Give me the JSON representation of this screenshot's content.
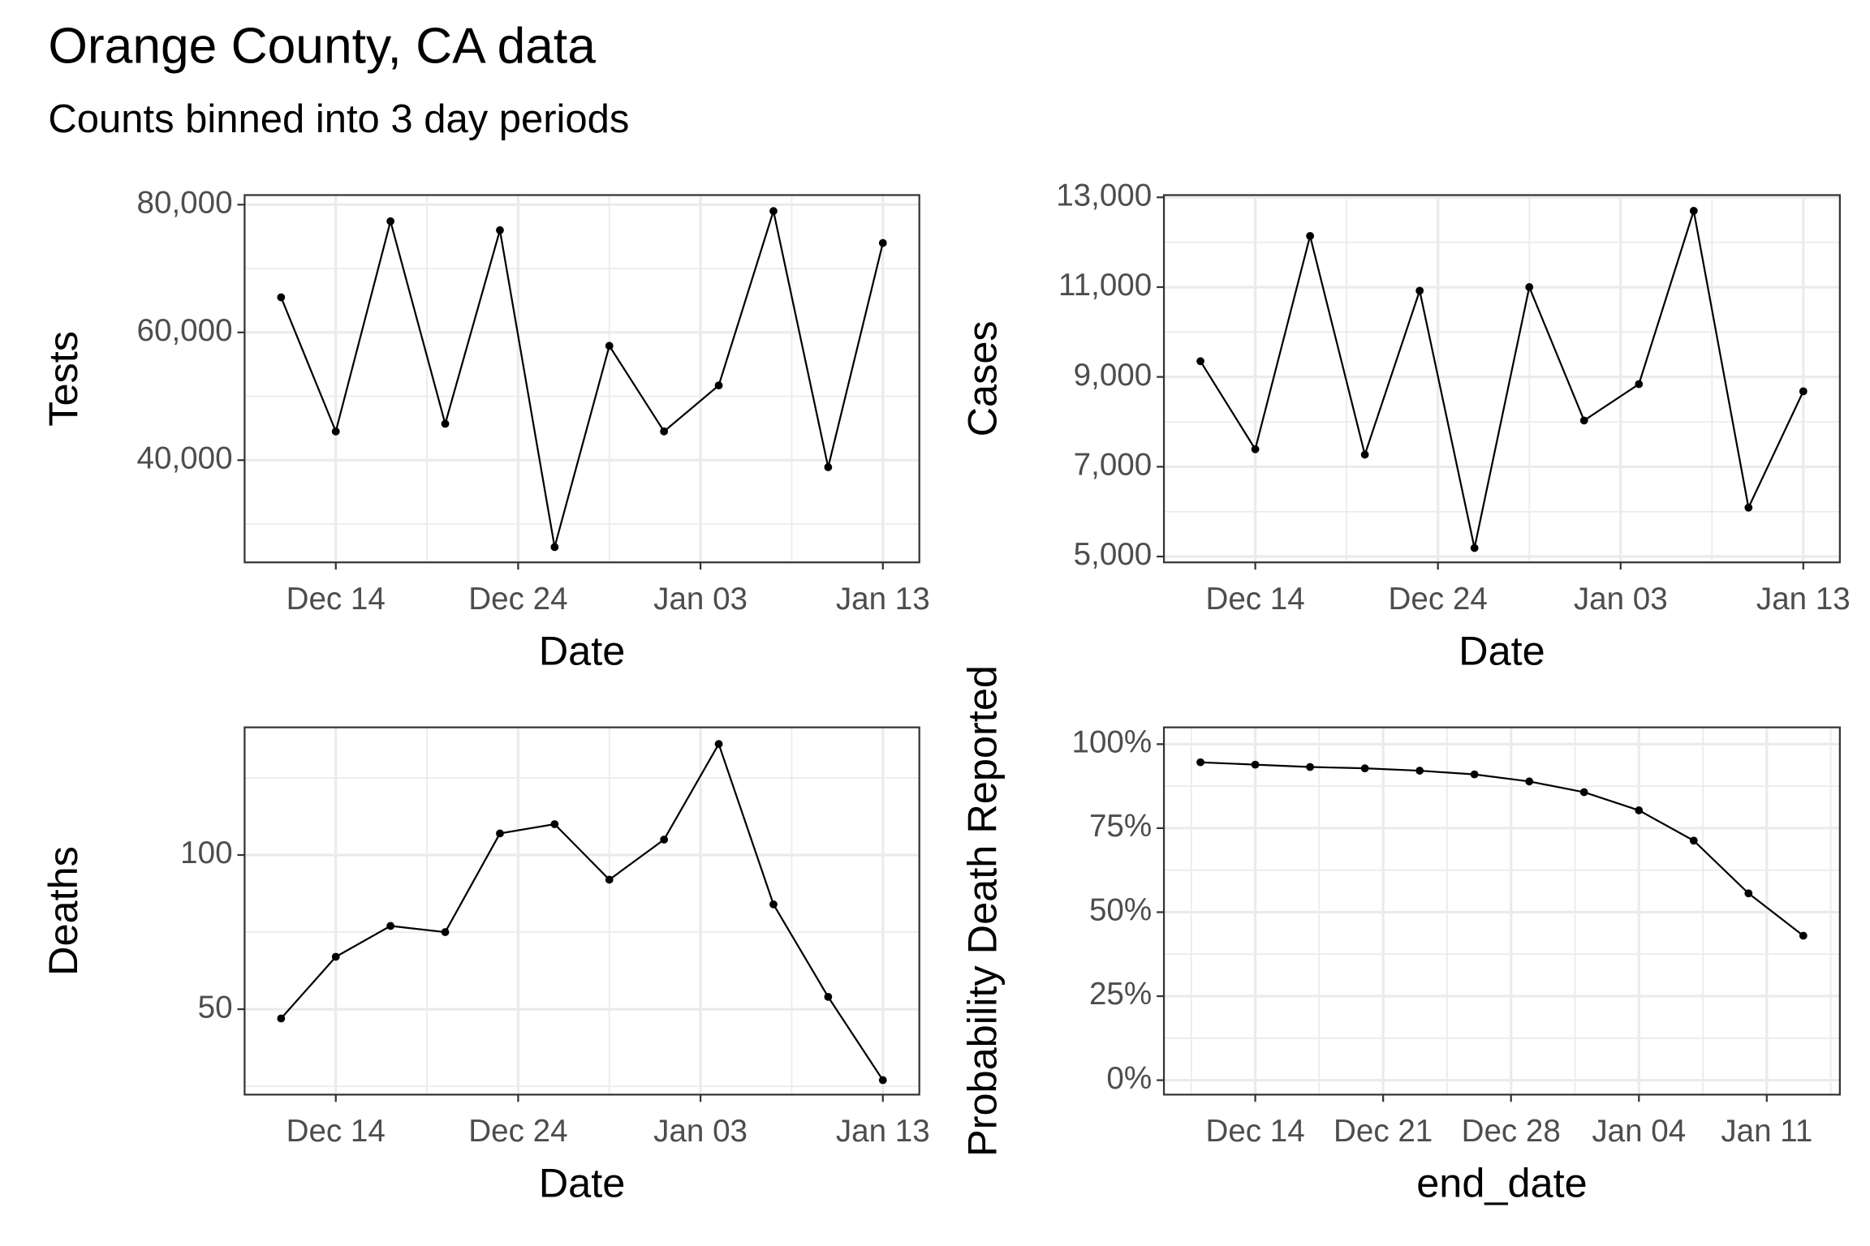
{
  "title": "Orange County, CA data",
  "subtitle": "Counts binned into 3 day periods",
  "chart_data": [
    {
      "type": "line",
      "x_label": "Date",
      "y_label": "Tests",
      "grid": true,
      "markers": true,
      "x": [
        "Dec 11",
        "Dec 14",
        "Dec 17",
        "Dec 20",
        "Dec 23",
        "Dec 26",
        "Dec 29",
        "Jan 01",
        "Jan 04",
        "Jan 07",
        "Jan 10",
        "Jan 13"
      ],
      "series": [
        {
          "color": "#000000",
          "values": [
            65500,
            44500,
            77400,
            45700,
            76000,
            26400,
            57900,
            44500,
            51700,
            79000,
            38900,
            74000
          ]
        }
      ],
      "xlim": [
        "Dec 09",
        "Jan 15"
      ],
      "xticks": [
        "Dec 14",
        "Dec 24",
        "Jan 03",
        "Jan 13"
      ],
      "ylim": [
        24000,
        81500
      ],
      "yticks": [
        {
          "value": 40000,
          "label": "40,000"
        },
        {
          "value": 60000,
          "label": "60,000"
        },
        {
          "value": 80000,
          "label": "80,000"
        }
      ]
    },
    {
      "type": "line",
      "x_label": "Date",
      "y_label": "Cases",
      "grid": true,
      "markers": true,
      "x": [
        "Dec 11",
        "Dec 14",
        "Dec 17",
        "Dec 20",
        "Dec 23",
        "Dec 26",
        "Dec 29",
        "Jan 01",
        "Jan 04",
        "Jan 07",
        "Jan 10",
        "Jan 13"
      ],
      "series": [
        {
          "color": "#000000",
          "values": [
            9350,
            7390,
            12140,
            7270,
            10920,
            5190,
            11000,
            8030,
            8840,
            12700,
            6090,
            8680
          ]
        }
      ],
      "xlim": [
        "Dec 09",
        "Jan 15"
      ],
      "xticks": [
        "Dec 14",
        "Dec 24",
        "Jan 03",
        "Jan 13"
      ],
      "ylim": [
        4870,
        13050
      ],
      "yticks": [
        {
          "value": 5000,
          "label": "5,000"
        },
        {
          "value": 7000,
          "label": "7,000"
        },
        {
          "value": 9000,
          "label": "9,000"
        },
        {
          "value": 11000,
          "label": "11,000"
        },
        {
          "value": 13000,
          "label": "13,000"
        }
      ]
    },
    {
      "type": "line",
      "x_label": "Date",
      "y_label": "Deaths",
      "grid": true,
      "markers": true,
      "x": [
        "Dec 11",
        "Dec 14",
        "Dec 17",
        "Dec 20",
        "Dec 23",
        "Dec 26",
        "Dec 29",
        "Jan 01",
        "Jan 04",
        "Jan 07",
        "Jan 10",
        "Jan 13"
      ],
      "series": [
        {
          "color": "#000000",
          "values": [
            47,
            67,
            77,
            75,
            107,
            110,
            92,
            105,
            136,
            84,
            54,
            27
          ]
        }
      ],
      "xlim": [
        "Dec 09",
        "Jan 15"
      ],
      "xticks": [
        "Dec 14",
        "Dec 24",
        "Jan 03",
        "Jan 13"
      ],
      "ylim": [
        22.3,
        141.4
      ],
      "yticks": [
        50,
        100
      ]
    },
    {
      "type": "line",
      "x_label": "end_date",
      "y_label": "Probability Death Reported",
      "grid": true,
      "markers": true,
      "x": [
        "Dec 11",
        "Dec 14",
        "Dec 17",
        "Dec 20",
        "Dec 23",
        "Dec 26",
        "Dec 29",
        "Jan 01",
        "Jan 04",
        "Jan 07",
        "Jan 10",
        "Jan 13"
      ],
      "series": [
        {
          "color": "#000000",
          "values": [
            94.6,
            93.9,
            93.2,
            92.8,
            92.1,
            91.0,
            88.9,
            85.7,
            80.3,
            71.3,
            55.6,
            43.0
          ]
        }
      ],
      "xlim": [
        "Dec 09",
        "Jan 15"
      ],
      "xticks": [
        "Dec 14",
        "Dec 21",
        "Dec 28",
        "Jan 04",
        "Jan 11"
      ],
      "ylim": [
        -4.3,
        105
      ],
      "yticks": [
        {
          "value": 0,
          "label": "0%"
        },
        {
          "value": 25,
          "label": "25%"
        },
        {
          "value": 50,
          "label": "50%"
        },
        {
          "value": 75,
          "label": "75%"
        },
        {
          "value": 100,
          "label": "100%"
        }
      ]
    }
  ]
}
